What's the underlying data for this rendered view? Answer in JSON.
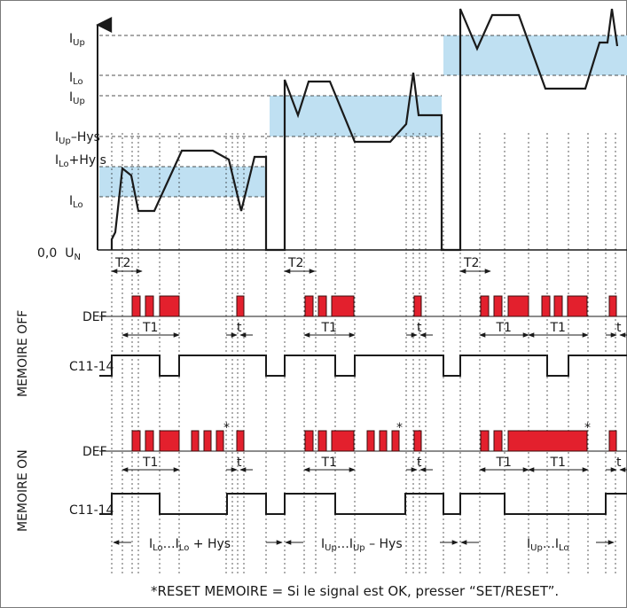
{
  "levels": {
    "group1": {
      "top": {
        "base": "I",
        "sub": "Lo",
        "suffix": "+Hy s"
      },
      "bottom": {
        "base": "I",
        "sub": "Lo",
        "suffix": ""
      }
    },
    "group2": {
      "top": {
        "base": "I",
        "sub": "Up",
        "suffix": ""
      },
      "bottom": {
        "base": "I",
        "sub": "Up",
        "suffix": "–Hys"
      }
    },
    "group3": {
      "top": {
        "base": "I",
        "sub": "Up",
        "suffix": ""
      },
      "bottom": {
        "base": "I",
        "sub": "Lo",
        "suffix": ""
      }
    },
    "origin": {
      "zero": "0,0",
      "base": "U",
      "sub": "N"
    }
  },
  "timing": {
    "t2": "T2",
    "t1": "T1",
    "t": "t"
  },
  "side_labels": {
    "off": "MEMOIRE OFF",
    "on": "MEMOIRE ON"
  },
  "row_labels": {
    "def": "DEF",
    "c1114": "C11-14"
  },
  "phases": [
    {
      "parts": [
        {
          "base": "I",
          "sub": "Lo"
        },
        {
          "text": "…"
        },
        {
          "base": "I",
          "sub": "Lo"
        },
        {
          "text": " + Hys"
        }
      ]
    },
    {
      "parts": [
        {
          "base": "I",
          "sub": "Up"
        },
        {
          "text": "…"
        },
        {
          "base": "I",
          "sub": "Up"
        },
        {
          "text": " – Hys"
        }
      ]
    },
    {
      "parts": [
        {
          "base": "I",
          "sub": "Up"
        },
        {
          "text": "…"
        },
        {
          "base": "I",
          "sub": "Lo"
        }
      ]
    }
  ],
  "asterisk": "*",
  "footnote": "*RESET MEMOIRE = Si le signal est OK, presser “SET/RESET”.",
  "colors": {
    "band": "#bfe0f2",
    "pulse": "#e3202d",
    "pulse_stroke": "#3a0d0d",
    "line": "#1a1a1a",
    "frame": "#7a7a7a"
  }
}
